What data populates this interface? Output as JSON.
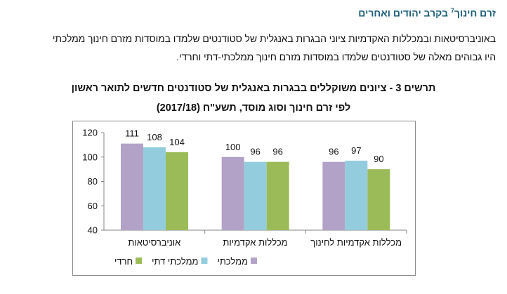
{
  "heading": {
    "text": "זרם חינוך",
    "sup": "7",
    "rest": " בקרב יהודים ואחרים"
  },
  "paragraph": [
    "באוניברסיטאות ובמכללות האקדמיות ציוני הבגרות באנגלית של סטודנטים שלמדו במוסדות מזרם חינוך ממלכתי",
    "היו גבוהים מאלה של סטודנטים שלמדו במוסדות מזרם חינוך ממלכתי-דתי וחרדי."
  ],
  "chart_data": {
    "type": "bar",
    "title_lines": [
      "תרשים 3 - ציונים משוקללים בבגרות באנגלית של סטודנטים חדשים לתואר ראשון",
      "לפי זרם חינוך וסוג מוסד, תשע\"ח (2017/18)"
    ],
    "categories": [
      "אוניברסיטאות",
      "מכללות אקדמיות",
      "מכללות אקדמיות לחינוך"
    ],
    "series": [
      {
        "name": "ממלכתי",
        "values": [
          111,
          100,
          96
        ],
        "labels": [
          "111",
          "100",
          "96"
        ],
        "color": "#b3a2c7"
      },
      {
        "name": "ממלכתי דתי",
        "values": [
          108,
          96,
          97
        ],
        "labels": [
          "108",
          "96",
          "97"
        ],
        "color": "#93cddd"
      },
      {
        "name": "חרדי",
        "values": [
          104,
          96,
          90
        ],
        "labels": [
          "104",
          "96",
          "90"
        ],
        "color": "#9bbb59"
      }
    ],
    "yticks": [
      "40",
      "60",
      "80",
      "100",
      "120"
    ],
    "ylim": [
      40,
      120
    ],
    "grid": false,
    "legend": "bottom"
  }
}
